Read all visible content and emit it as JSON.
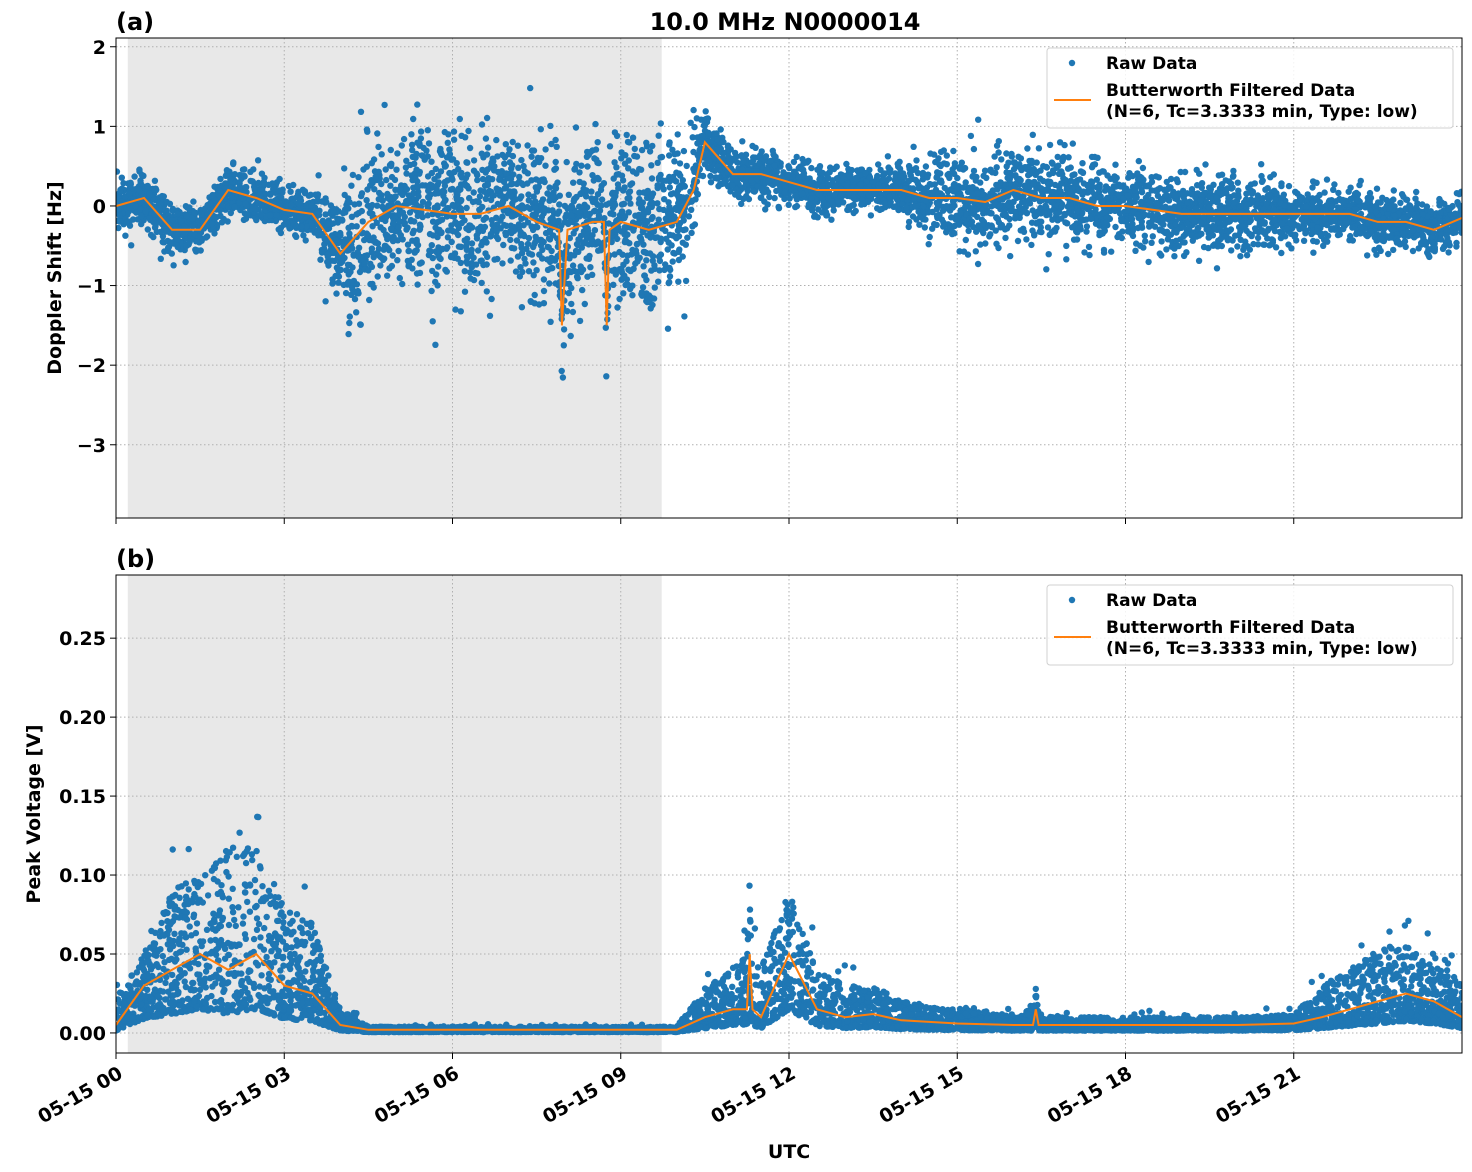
{
  "chart_data": [
    {
      "type": "scatter",
      "panel_label": "(a)",
      "title": "10.0 MHz N0000014",
      "xlabel": "",
      "ylabel": "Doppler Shift [Hz]",
      "xlim_hours_utc": [
        0,
        24
      ],
      "ylim": [
        -3.92,
        2.11
      ],
      "yticks": [
        -3,
        -2,
        -1,
        0,
        1,
        2
      ],
      "ytick_labels": [
        "−3",
        "−2",
        "−1",
        "0",
        "1",
        "2"
      ],
      "grid": true,
      "legend_placement": "upper right",
      "shaded_span_hours": [
        0.21,
        9.73
      ],
      "series": [
        {
          "name": "Raw Data",
          "kind": "scatter",
          "color": "#1f77b4"
        },
        {
          "name": "Butterworth Filtered Data\n(N=6, Tc=3.3333 min, Type: low)",
          "kind": "line",
          "color": "#ff7f0e"
        }
      ],
      "legend": [
        "Raw Data",
        "Butterworth Filtered Data",
        "(N=6, Tc=3.3333 min, Type: low)"
      ],
      "x_hours": [
        0,
        0.5,
        1,
        1.5,
        2,
        2.5,
        3,
        3.5,
        4,
        4.5,
        5,
        5.5,
        6,
        6.5,
        7,
        7.5,
        7.9,
        7.95,
        8.05,
        8.5,
        8.7,
        8.75,
        8.8,
        9,
        9.5,
        10,
        10.3,
        10.5,
        11,
        11.5,
        12,
        12.5,
        13,
        13.5,
        14,
        14.5,
        15,
        15.5,
        16,
        16.5,
        17,
        17.5,
        18,
        18.5,
        19,
        19.5,
        20,
        20.5,
        21,
        21.5,
        22,
        22.5,
        23,
        23.5,
        24
      ],
      "filtered": [
        0.0,
        0.1,
        -0.3,
        -0.3,
        0.2,
        0.1,
        -0.05,
        -0.1,
        -0.6,
        -0.2,
        0.0,
        -0.05,
        -0.1,
        -0.1,
        0.0,
        -0.2,
        -0.3,
        -1.5,
        -0.3,
        -0.2,
        -0.2,
        -1.5,
        -0.3,
        -0.2,
        -0.3,
        -0.2,
        0.2,
        0.8,
        0.4,
        0.4,
        0.3,
        0.2,
        0.2,
        0.2,
        0.2,
        0.1,
        0.1,
        0.05,
        0.2,
        0.1,
        0.1,
        0.0,
        0.0,
        -0.05,
        -0.1,
        -0.1,
        -0.1,
        -0.1,
        -0.1,
        -0.1,
        -0.1,
        -0.2,
        -0.2,
        -0.3,
        -0.15
      ],
      "raw_spread": [
        0.35,
        0.35,
        0.35,
        0.35,
        0.35,
        0.35,
        0.35,
        0.35,
        0.9,
        1.1,
        1.1,
        1.1,
        1.1,
        1.1,
        1.1,
        1.1,
        1.1,
        1.1,
        1.1,
        1.1,
        1.1,
        1.1,
        1.1,
        1.1,
        1.1,
        1.1,
        0.9,
        0.4,
        0.35,
        0.35,
        0.3,
        0.3,
        0.3,
        0.3,
        0.3,
        0.45,
        0.6,
        0.6,
        0.6,
        0.6,
        0.6,
        0.6,
        0.5,
        0.5,
        0.5,
        0.5,
        0.5,
        0.5,
        0.35,
        0.35,
        0.35,
        0.35,
        0.35,
        0.35,
        0.35
      ]
    },
    {
      "type": "scatter",
      "panel_label": "(b)",
      "title": "",
      "xlabel": "UTC",
      "ylabel": "Peak Voltage [V]",
      "xlim_hours_utc": [
        0,
        24
      ],
      "ylim": [
        -0.0127,
        0.29
      ],
      "yticks": [
        0,
        0.05,
        0.1,
        0.15,
        0.2,
        0.25
      ],
      "ytick_labels": [
        "0.00",
        "0.05",
        "0.10",
        "0.15",
        "0.20",
        "0.25"
      ],
      "xtick_hours": [
        0,
        3,
        6,
        9,
        12,
        15,
        18,
        21
      ],
      "xtick_labels": [
        "05-15 00",
        "05-15 03",
        "05-15 06",
        "05-15 09",
        "05-15 12",
        "05-15 15",
        "05-15 18",
        "05-15 21"
      ],
      "grid": true,
      "legend_placement": "upper right",
      "shaded_span_hours": [
        0.21,
        9.73
      ],
      "series": [
        {
          "name": "Raw Data",
          "kind": "scatter",
          "color": "#1f77b4"
        },
        {
          "name": "Butterworth Filtered Data\n(N=6, Tc=3.3333 min, Type: low)",
          "kind": "line",
          "color": "#ff7f0e"
        }
      ],
      "legend": [
        "Raw Data",
        "Butterworth Filtered Data",
        "(N=6, Tc=3.3333 min, Type: low)"
      ],
      "x_hours": [
        0,
        0.5,
        1,
        1.5,
        2,
        2.5,
        3,
        3.5,
        4,
        4.5,
        5,
        6,
        7,
        8,
        9,
        10,
        10.5,
        11,
        11.25,
        11.3,
        11.35,
        11.5,
        12,
        12.5,
        13,
        13.5,
        14,
        15,
        16,
        16.35,
        16.4,
        16.45,
        17,
        18,
        19,
        20,
        21,
        21.5,
        22,
        22.5,
        23,
        23.5,
        24
      ],
      "filtered": [
        0.005,
        0.03,
        0.04,
        0.05,
        0.04,
        0.05,
        0.03,
        0.025,
        0.005,
        0.002,
        0.002,
        0.002,
        0.002,
        0.002,
        0.002,
        0.002,
        0.01,
        0.015,
        0.015,
        0.05,
        0.015,
        0.01,
        0.05,
        0.015,
        0.01,
        0.012,
        0.008,
        0.006,
        0.005,
        0.005,
        0.015,
        0.005,
        0.005,
        0.005,
        0.005,
        0.005,
        0.006,
        0.01,
        0.015,
        0.02,
        0.025,
        0.02,
        0.01
      ],
      "raw_max": [
        0.02,
        0.05,
        0.09,
        0.1,
        0.12,
        0.12,
        0.08,
        0.07,
        0.015,
        0.004,
        0.004,
        0.004,
        0.004,
        0.004,
        0.004,
        0.004,
        0.03,
        0.04,
        0.05,
        0.1,
        0.05,
        0.04,
        0.09,
        0.04,
        0.03,
        0.03,
        0.02,
        0.015,
        0.012,
        0.015,
        0.03,
        0.012,
        0.01,
        0.01,
        0.01,
        0.01,
        0.012,
        0.03,
        0.04,
        0.055,
        0.055,
        0.05,
        0.03
      ]
    }
  ]
}
